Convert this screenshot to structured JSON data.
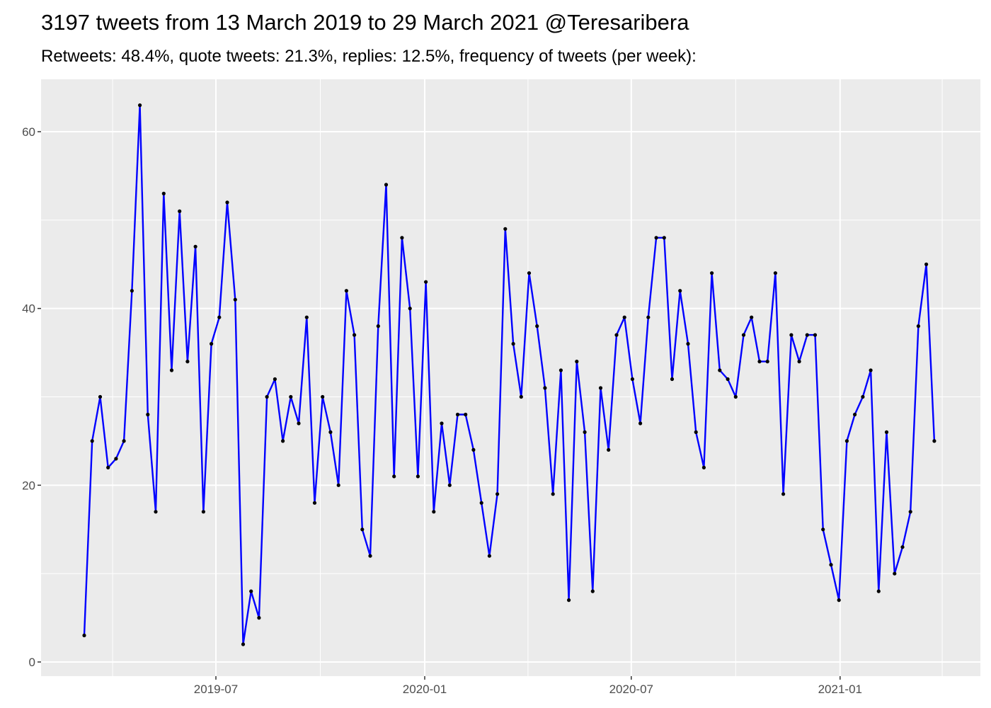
{
  "chart_data": {
    "type": "line",
    "title": "3197 tweets from 13 March 2019 to 29 March 2021 @Teresaribera",
    "subtitle": "Retweets: 48.4%, quote tweets: 21.3%, replies: 12.5%, frequency of tweets (per week):",
    "xlabel": "",
    "ylabel": "",
    "x_start": "2019-03-07",
    "x_step_days": 7,
    "values": [
      3,
      25,
      30,
      22,
      23,
      25,
      42,
      63,
      28,
      17,
      53,
      33,
      51,
      34,
      47,
      17,
      36,
      39,
      52,
      41,
      2,
      8,
      5,
      30,
      32,
      25,
      30,
      27,
      39,
      18,
      30,
      26,
      20,
      42,
      37,
      15,
      12,
      38,
      54,
      21,
      48,
      40,
      21,
      43,
      17,
      27,
      20,
      28,
      28,
      24,
      18,
      12,
      19,
      49,
      36,
      30,
      44,
      38,
      31,
      19,
      33,
      7,
      34,
      26,
      8,
      31,
      24,
      37,
      39,
      32,
      27,
      39,
      48,
      48,
      32,
      42,
      36,
      26,
      22,
      44,
      33,
      32,
      30,
      37,
      39,
      34,
      34,
      44,
      19,
      37,
      34,
      37,
      37,
      15,
      11,
      7,
      25,
      28,
      30,
      33,
      8,
      26,
      10,
      13,
      17,
      38,
      45,
      25
    ],
    "ylim": [
      -3,
      66
    ],
    "y_ticks": [
      0,
      20,
      40,
      60
    ],
    "y_tick_labels": [
      "0",
      "20",
      "40",
      "60"
    ],
    "x_ticks": [
      "2019-07-01",
      "2020-01-01",
      "2020-07-01",
      "2021-01-01"
    ],
    "x_tick_labels": [
      "2019-07",
      "2020-01",
      "2020-07",
      "2021-01"
    ],
    "x_minor_ticks": [
      "2019-04-01",
      "2019-10-01",
      "2020-04-01",
      "2020-10-01",
      "2021-04-01"
    ],
    "grid": true,
    "line_color": "#0000ff",
    "point_color": "#000000",
    "panel_color": "#ebebeb"
  }
}
